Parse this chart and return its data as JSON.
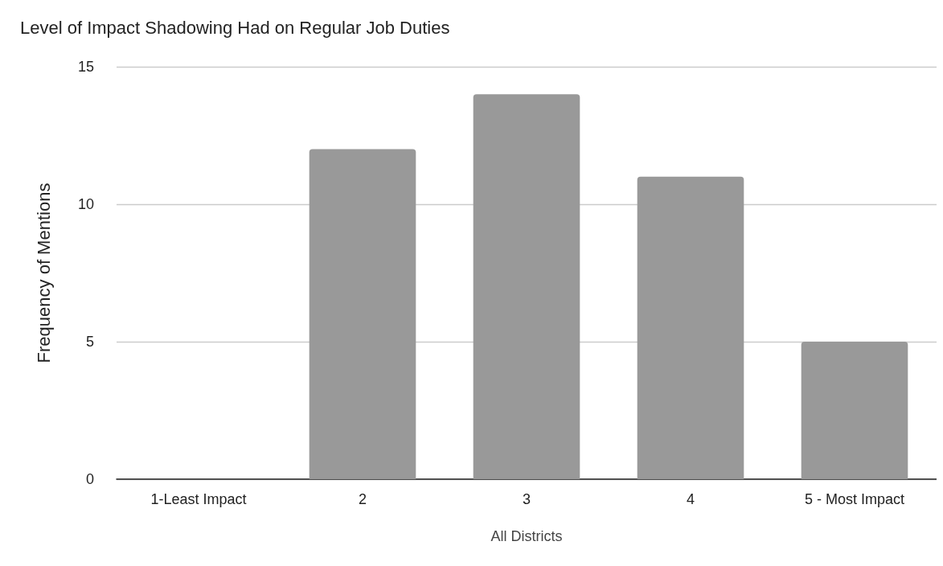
{
  "chart_data": {
    "type": "bar",
    "title": "Level of Impact Shadowing Had on Regular Job Duties",
    "xlabel": "All Districts",
    "ylabel": "Frequency of Mentions",
    "categories": [
      "1-Least Impact",
      "2",
      "3",
      "4",
      "5 - Most Impact"
    ],
    "values": [
      0,
      12,
      14,
      11,
      5
    ],
    "color": "#999999",
    "ylim": [
      0,
      15
    ],
    "yticks": [
      0,
      5,
      10,
      15
    ],
    "grid": "y"
  }
}
